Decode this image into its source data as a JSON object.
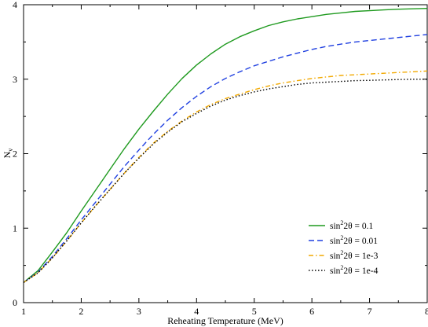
{
  "chart_data": {
    "type": "line",
    "xlabel": "Reheating Temperature (MeV)",
    "ylabel_main": "N",
    "ylabel_sub": "ν",
    "xlim": [
      1,
      8
    ],
    "ylim": [
      0,
      4
    ],
    "xticks": [
      "1",
      "2",
      "3",
      "4",
      "5",
      "6",
      "7",
      "8"
    ],
    "yticks": [
      "0",
      "1",
      "2",
      "3",
      "4"
    ],
    "grid": false,
    "legend_position": "bottom-right",
    "x": [
      1.0,
      1.25,
      1.5,
      1.75,
      2.0,
      2.25,
      2.5,
      2.75,
      3.0,
      3.25,
      3.5,
      3.75,
      4.0,
      4.25,
      4.5,
      4.75,
      5.0,
      5.25,
      5.5,
      5.75,
      6.0,
      6.25,
      6.5,
      6.75,
      7.0,
      7.25,
      7.5,
      7.75,
      8.0
    ],
    "series": [
      {
        "label_prefix": "sin",
        "label_sup": "2",
        "label_suffix": "2θ = 0.1",
        "color": "#1f9a1f",
        "dash": "solid",
        "values": [
          0.27,
          0.43,
          0.68,
          0.94,
          1.23,
          1.51,
          1.79,
          2.07,
          2.33,
          2.57,
          2.8,
          3.01,
          3.19,
          3.34,
          3.47,
          3.57,
          3.65,
          3.72,
          3.77,
          3.81,
          3.84,
          3.87,
          3.89,
          3.91,
          3.92,
          3.93,
          3.94,
          3.945,
          3.95
        ]
      },
      {
        "label_prefix": "sin",
        "label_sup": "2",
        "label_suffix": "2θ = 0.01",
        "color": "#1f3fe0",
        "dash": "dashed",
        "values": [
          0.27,
          0.41,
          0.62,
          0.86,
          1.11,
          1.35,
          1.59,
          1.83,
          2.05,
          2.26,
          2.45,
          2.62,
          2.77,
          2.9,
          3.01,
          3.1,
          3.18,
          3.24,
          3.3,
          3.35,
          3.4,
          3.44,
          3.47,
          3.5,
          3.52,
          3.54,
          3.56,
          3.58,
          3.6
        ]
      },
      {
        "label_prefix": "sin",
        "label_sup": "2",
        "label_suffix": "2θ = 1e-3",
        "color": "#f2a900",
        "dash": "dashdot",
        "values": [
          0.27,
          0.4,
          0.6,
          0.83,
          1.07,
          1.3,
          1.52,
          1.74,
          1.95,
          2.14,
          2.3,
          2.44,
          2.56,
          2.66,
          2.74,
          2.8,
          2.86,
          2.91,
          2.95,
          2.98,
          3.01,
          3.03,
          3.05,
          3.06,
          3.07,
          3.08,
          3.09,
          3.1,
          3.11
        ]
      },
      {
        "label_prefix": "sin",
        "label_sup": "2",
        "label_suffix": "2θ = 1e-4",
        "color": "#000000",
        "dash": "dotted",
        "values": [
          0.27,
          0.4,
          0.6,
          0.83,
          1.07,
          1.3,
          1.52,
          1.74,
          1.94,
          2.13,
          2.29,
          2.43,
          2.54,
          2.64,
          2.72,
          2.78,
          2.83,
          2.87,
          2.9,
          2.93,
          2.95,
          2.96,
          2.97,
          2.98,
          2.985,
          2.99,
          2.995,
          3.0,
          3.0
        ]
      }
    ]
  }
}
